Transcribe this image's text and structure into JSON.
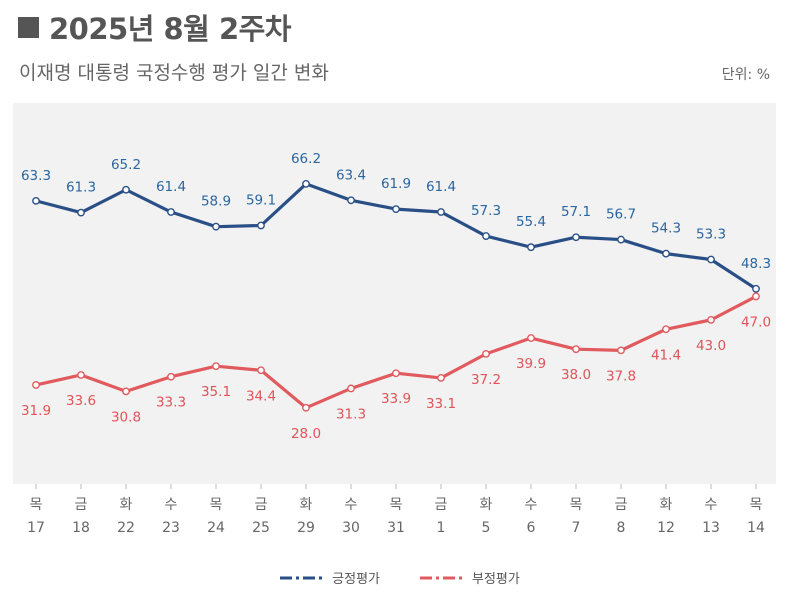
{
  "header": {
    "title": "2025년 8월 2주차",
    "subtitle": "이재명 대통령 국정수행 평가 일간 변화",
    "unit": "단위: %"
  },
  "colors": {
    "positive": "#2a4f86",
    "negative": "#e05a5e",
    "plot_background": "#f2f2f2",
    "positive_label": "#2a66a0",
    "negative_label": "#e0545a"
  },
  "chart_data": {
    "type": "line",
    "title": "이재명 대통령 국정수행 평가 일간 변화",
    "categories": [
      {
        "day": "목",
        "date": "17"
      },
      {
        "day": "금",
        "date": "18"
      },
      {
        "day": "화",
        "date": "22"
      },
      {
        "day": "수",
        "date": "23"
      },
      {
        "day": "목",
        "date": "24"
      },
      {
        "day": "금",
        "date": "25"
      },
      {
        "day": "화",
        "date": "29"
      },
      {
        "day": "수",
        "date": "30"
      },
      {
        "day": "목",
        "date": "31"
      },
      {
        "day": "금",
        "date": "1"
      },
      {
        "day": "화",
        "date": "5"
      },
      {
        "day": "수",
        "date": "6"
      },
      {
        "day": "목",
        "date": "7"
      },
      {
        "day": "금",
        "date": "8"
      },
      {
        "day": "화",
        "date": "12"
      },
      {
        "day": "수",
        "date": "13"
      },
      {
        "day": "목",
        "date": "14"
      }
    ],
    "series": [
      {
        "name": "긍정평가",
        "values": [
          63.3,
          61.3,
          65.2,
          61.4,
          58.9,
          59.1,
          66.2,
          63.4,
          61.9,
          61.4,
          57.3,
          55.4,
          57.1,
          56.7,
          54.3,
          53.3,
          48.3
        ],
        "labels": [
          "63.3",
          "61.3",
          "65.2",
          "61.4",
          "58.9",
          "59.1",
          "66.2",
          "63.4",
          "61.9",
          "61.4",
          "57.3",
          "55.4",
          "57.1",
          "56.7",
          "54.3",
          "53.3",
          "48.3"
        ]
      },
      {
        "name": "부정평가",
        "values": [
          31.9,
          33.6,
          30.8,
          33.3,
          35.1,
          34.4,
          28.0,
          31.3,
          33.9,
          33.1,
          37.2,
          39.9,
          38.0,
          37.8,
          41.4,
          43.0,
          47.0
        ],
        "labels": [
          "31.9",
          "33.6",
          "30.8",
          "33.3",
          "35.1",
          "34.4",
          "28.0",
          "31.3",
          "33.9",
          "33.1",
          "37.2",
          "39.9",
          "38.0",
          "37.8",
          "41.4",
          "43.0",
          "47.0"
        ]
      }
    ],
    "ylim": [
      15,
      80
    ],
    "grid": false,
    "legend_position": "bottom-center"
  }
}
